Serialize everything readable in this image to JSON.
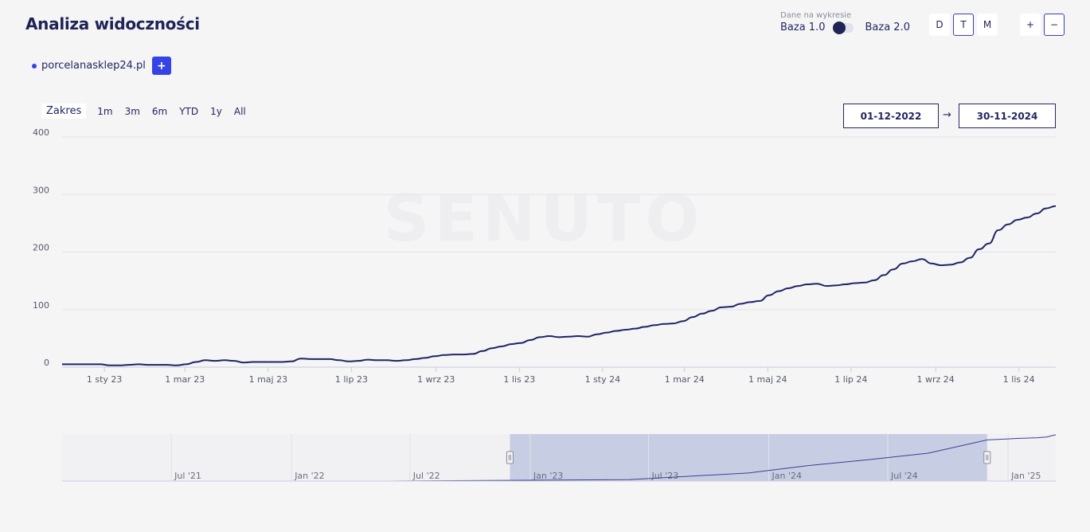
{
  "header": {
    "title": "Analiza widoczności",
    "base_caption": "Dane na wykresie",
    "base_left": "Baza 1.0",
    "base_right": "Baza 2.0",
    "period_buttons": [
      "D",
      "T",
      "M"
    ],
    "period_active": "T",
    "zoom_plus": "+",
    "zoom_minus": "−"
  },
  "domain": {
    "name": "porcelanasklep24.pl",
    "color": "#3542e6",
    "add_label": "+"
  },
  "range": {
    "label": "Zakres",
    "buttons": [
      "1m",
      "3m",
      "6m",
      "YTD",
      "1y",
      "All"
    ],
    "from": "01-12-2022",
    "to": "30-11-2024",
    "arrow": "→"
  },
  "watermark": "SENUTO",
  "chart_data": {
    "type": "line",
    "series": [
      {
        "name": "porcelanasklep24.pl",
        "color": "#1f2466",
        "x": [
          "2022-12-01",
          "2022-12-08",
          "2022-12-15",
          "2022-12-22",
          "2022-12-29",
          "2023-01-05",
          "2023-01-12",
          "2023-01-19",
          "2023-01-26",
          "2023-02-02",
          "2023-02-09",
          "2023-02-16",
          "2023-02-23",
          "2023-03-02",
          "2023-03-09",
          "2023-03-16",
          "2023-03-23",
          "2023-03-30",
          "2023-04-06",
          "2023-04-13",
          "2023-04-20",
          "2023-04-27",
          "2023-05-04",
          "2023-05-11",
          "2023-05-18",
          "2023-05-25",
          "2023-06-01",
          "2023-06-08",
          "2023-06-15",
          "2023-06-22",
          "2023-06-29",
          "2023-07-06",
          "2023-07-13",
          "2023-07-20",
          "2023-07-27",
          "2023-08-03",
          "2023-08-10",
          "2023-08-17",
          "2023-08-24",
          "2023-08-31",
          "2023-09-07",
          "2023-09-14",
          "2023-09-21",
          "2023-09-28",
          "2023-10-05",
          "2023-10-12",
          "2023-10-19",
          "2023-10-26",
          "2023-11-02",
          "2023-11-09",
          "2023-11-16",
          "2023-11-23",
          "2023-11-30",
          "2023-12-07",
          "2023-12-14",
          "2023-12-21",
          "2023-12-28",
          "2024-01-04",
          "2024-01-11",
          "2024-01-18",
          "2024-01-25",
          "2024-02-01",
          "2024-02-08",
          "2024-02-15",
          "2024-02-22",
          "2024-02-29",
          "2024-03-07",
          "2024-03-14",
          "2024-03-21",
          "2024-03-28",
          "2024-04-04",
          "2024-04-11",
          "2024-04-18",
          "2024-04-25",
          "2024-05-02",
          "2024-05-09",
          "2024-05-16",
          "2024-05-23",
          "2024-05-30",
          "2024-06-06",
          "2024-06-13",
          "2024-06-20",
          "2024-06-27",
          "2024-07-04",
          "2024-07-11",
          "2024-07-18",
          "2024-07-25",
          "2024-08-01",
          "2024-08-08",
          "2024-08-15",
          "2024-08-22",
          "2024-08-29",
          "2024-09-05",
          "2024-09-12",
          "2024-09-19",
          "2024-09-26",
          "2024-10-03",
          "2024-10-10",
          "2024-10-17",
          "2024-10-24",
          "2024-10-31",
          "2024-11-07",
          "2024-11-14",
          "2024-11-21",
          "2024-11-28"
        ],
        "values": [
          5,
          5,
          5,
          5,
          5,
          3,
          3,
          4,
          5,
          4,
          4,
          4,
          3,
          5,
          9,
          12,
          11,
          12,
          11,
          8,
          9,
          9,
          9,
          9,
          10,
          15,
          14,
          14,
          14,
          12,
          10,
          11,
          13,
          12,
          12,
          11,
          12,
          14,
          16,
          19,
          21,
          22,
          22,
          23,
          28,
          33,
          36,
          40,
          42,
          47,
          52,
          54,
          52,
          53,
          54,
          53,
          57,
          60,
          63,
          65,
          67,
          70,
          73,
          75,
          76,
          80,
          87,
          93,
          98,
          104,
          105,
          110,
          113,
          115,
          125,
          132,
          137,
          141,
          144,
          145,
          141,
          142,
          144,
          146,
          147,
          151,
          160,
          170,
          180,
          184,
          188,
          180,
          177,
          178,
          182,
          190,
          205,
          215,
          238,
          248,
          256,
          260,
          267,
          276,
          280
        ]
      }
    ],
    "x_ticks": [
      "1 sty 23",
      "1 mar 23",
      "1 maj 23",
      "1 lip 23",
      "1 wrz 23",
      "1 lis 23",
      "1 sty 24",
      "1 mar 24",
      "1 maj 24",
      "1 lip 24",
      "1 wrz 24",
      "1 lis 24"
    ],
    "x_tick_dates": [
      "2023-01-01",
      "2023-03-01",
      "2023-05-01",
      "2023-07-01",
      "2023-09-01",
      "2023-11-01",
      "2024-01-01",
      "2024-03-01",
      "2024-05-01",
      "2024-07-01",
      "2024-09-01",
      "2024-11-01"
    ],
    "y_ticks": [
      0,
      100,
      200,
      300,
      400
    ],
    "ylim": [
      0,
      400
    ],
    "grid": true,
    "legend": "none"
  },
  "navigator": {
    "labels": [
      "Jul '21",
      "Jan '22",
      "Jul '22",
      "Jan '23",
      "Jul '23",
      "Jan '24",
      "Jul '24",
      "Jan '25"
    ],
    "label_dates": [
      "2021-07-01",
      "2022-01-01",
      "2022-07-01",
      "2023-01-01",
      "2023-07-01",
      "2024-01-01",
      "2024-07-01",
      "2025-01-01"
    ],
    "start": "2021-01-15",
    "end": "2025-03-15",
    "selected_from": "2022-12-01",
    "selected_to": "2024-11-30",
    "overview_x": [
      "2021-01-15",
      "2022-06-01",
      "2022-12-01",
      "2023-06-01",
      "2023-12-01",
      "2024-03-01",
      "2024-06-01",
      "2024-09-01",
      "2024-11-30",
      "2025-01-15",
      "2025-02-15",
      "2025-03-01",
      "2025-03-15"
    ],
    "overview_values": [
      0,
      0,
      5,
      10,
      55,
      105,
      145,
      190,
      280,
      290,
      295,
      300,
      315
    ],
    "overview_max": 320
  }
}
